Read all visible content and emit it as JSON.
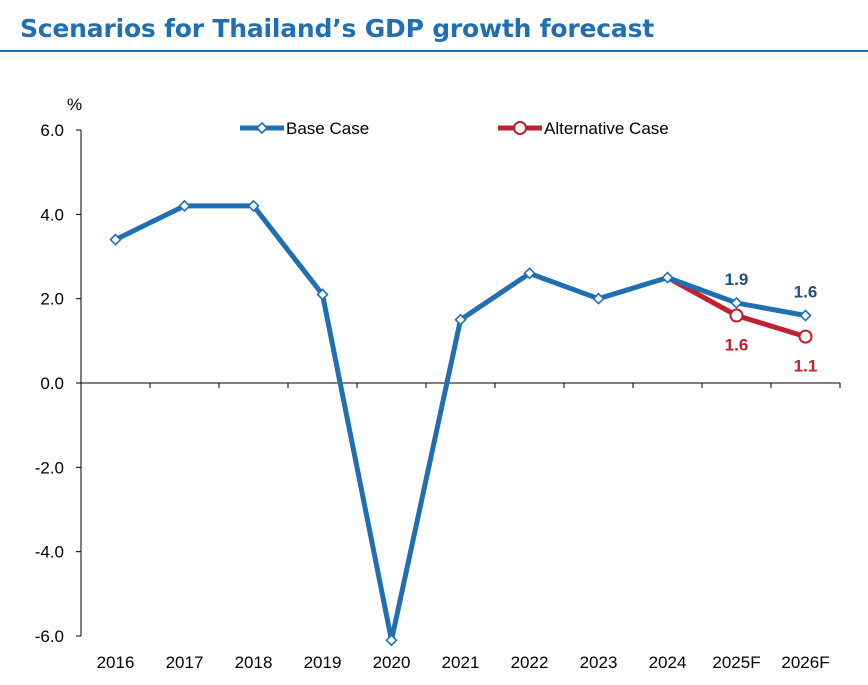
{
  "title": "Scenarios for Thailand’s GDP growth forecast",
  "colors": {
    "title": "#1f6fb2",
    "base_case": "#1f6fb2",
    "alternative_case": "#c0202f",
    "base_label": "#1f4e8c",
    "alternative_label": "#c0202f"
  },
  "chart_data": {
    "type": "line",
    "title": "",
    "xlabel": "",
    "ylabel": "%",
    "categories": [
      "2016",
      "2017",
      "2018",
      "2019",
      "2020",
      "2021",
      "2022",
      "2023",
      "2024",
      "2025F",
      "2026F"
    ],
    "ylim": [
      -6.0,
      6.0
    ],
    "yticks": [
      "6.0",
      "4.0",
      "2.0",
      "0.0",
      "-2.0",
      "-4.0",
      "-6.0"
    ],
    "grid": false,
    "legend_position": "top",
    "series": [
      {
        "name": "Base Case",
        "color": "#1f6fb2",
        "marker": "diamond",
        "values": [
          3.4,
          4.2,
          4.2,
          2.1,
          -6.1,
          1.5,
          2.6,
          2.0,
          2.5,
          1.9,
          1.6
        ]
      },
      {
        "name": "Alternative Case",
        "color": "#c0202f",
        "marker": "circle",
        "values": [
          null,
          null,
          null,
          null,
          null,
          null,
          null,
          null,
          2.5,
          1.6,
          1.1
        ]
      }
    ],
    "annotations": [
      {
        "series": "Base Case",
        "category": "2025F",
        "text": "1.9",
        "position": "above"
      },
      {
        "series": "Base Case",
        "category": "2026F",
        "text": "1.6",
        "position": "above"
      },
      {
        "series": "Alternative Case",
        "category": "2025F",
        "text": "1.6",
        "position": "below"
      },
      {
        "series": "Alternative Case",
        "category": "2026F",
        "text": "1.1",
        "position": "below"
      }
    ]
  }
}
